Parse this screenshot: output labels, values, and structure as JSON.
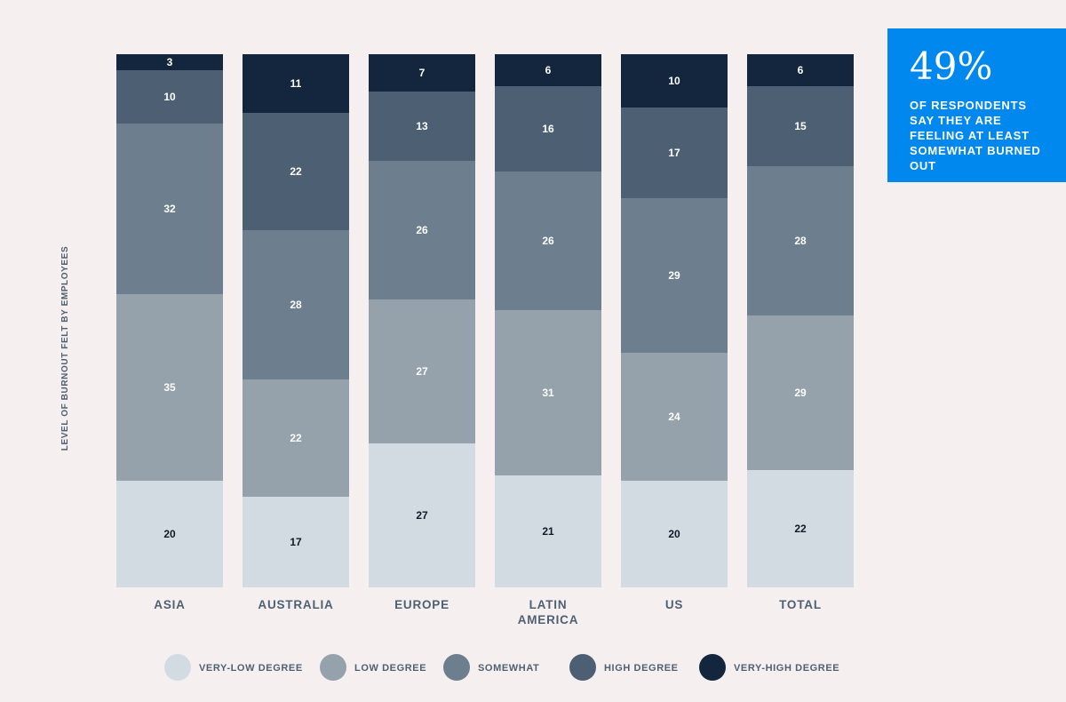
{
  "chart_data": {
    "type": "bar",
    "stacked": true,
    "ylabel": "LEVEL OF BURNOUT FELT BY EMPLOYEES",
    "categories": [
      "ASIA",
      "AUSTRALIA",
      "EUROPE",
      "LATIN AMERICA",
      "US",
      "TOTAL"
    ],
    "series": [
      {
        "name": "VERY-LOW DEGREE",
        "color": "#d3dbe2",
        "label_color": "#111827",
        "values": [
          20,
          17,
          27,
          21,
          20,
          22
        ]
      },
      {
        "name": "LOW DEGREE",
        "color": "#95a1ab",
        "label_color": "#ffffff",
        "values": [
          35,
          22,
          27,
          31,
          24,
          29
        ]
      },
      {
        "name": "SOMEWHAT",
        "color": "#6d7e8f",
        "label_color": "#ffffff",
        "values": [
          32,
          28,
          26,
          26,
          29,
          28
        ]
      },
      {
        "name": "HIGH DEGREE",
        "color": "#4d5f73",
        "label_color": "#ffffff",
        "values": [
          10,
          22,
          13,
          16,
          17,
          15
        ]
      },
      {
        "name": "VERY-HIGH DEGREE",
        "color": "#13263d",
        "label_color": "#ffffff",
        "values": [
          3,
          11,
          7,
          6,
          10,
          6
        ]
      }
    ],
    "ylim": [
      0,
      100
    ],
    "grid": false,
    "legend_position": "bottom"
  },
  "callout": {
    "big": "49%",
    "text": "OF RESPONDENTS SAY THEY ARE FEELING AT LEAST SOMEWHAT BURNED OUT"
  }
}
